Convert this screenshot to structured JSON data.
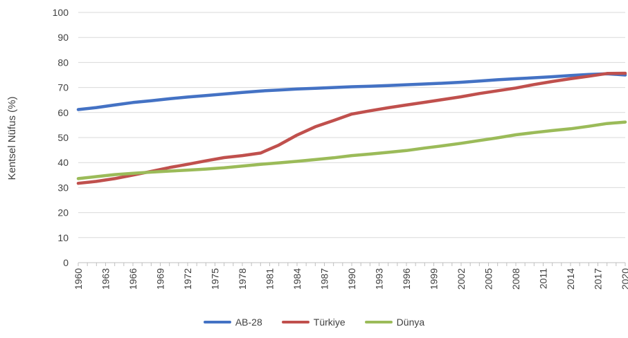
{
  "chart_data": {
    "type": "line",
    "title": "",
    "xlabel": "",
    "ylabel": "Kentsel Nüfus (%)",
    "ylim": [
      0,
      100
    ],
    "yticks": [
      0,
      10,
      20,
      30,
      40,
      50,
      60,
      70,
      80,
      90,
      100
    ],
    "xticks": [
      "1960",
      "1963",
      "1966",
      "1969",
      "1972",
      "1975",
      "1978",
      "1981",
      "1984",
      "1987",
      "1990",
      "1993",
      "1996",
      "1999",
      "2002",
      "2005",
      "2008",
      "2011",
      "2014",
      "2017",
      "2020"
    ],
    "grid": "horizontal",
    "legend_position": "bottom",
    "series": [
      {
        "name": "AB-28",
        "color": "#4472C4",
        "x": [
          1960,
          1962,
          1964,
          1966,
          1968,
          1970,
          1972,
          1974,
          1976,
          1978,
          1980,
          1982,
          1984,
          1986,
          1988,
          1990,
          1992,
          1994,
          1996,
          1998,
          2000,
          2002,
          2004,
          2006,
          2008,
          2010,
          2012,
          2014,
          2016,
          2018,
          2020
        ],
        "values": [
          61.2,
          62.0,
          63.0,
          64.0,
          64.7,
          65.5,
          66.2,
          66.8,
          67.4,
          68.0,
          68.6,
          69.0,
          69.4,
          69.7,
          70.0,
          70.3,
          70.5,
          70.8,
          71.1,
          71.4,
          71.7,
          72.1,
          72.6,
          73.1,
          73.5,
          73.9,
          74.3,
          74.8,
          75.2,
          75.5,
          75.0
        ]
      },
      {
        "name": "Türkiye",
        "color": "#C0504D",
        "x": [
          1960,
          1962,
          1964,
          1966,
          1968,
          1970,
          1972,
          1974,
          1976,
          1978,
          1980,
          1982,
          1984,
          1986,
          1988,
          1990,
          1992,
          1994,
          1996,
          1998,
          2000,
          2002,
          2004,
          2006,
          2008,
          2010,
          2012,
          2014,
          2016,
          2018,
          2020
        ],
        "values": [
          31.7,
          32.5,
          33.6,
          35.0,
          36.5,
          38.0,
          39.3,
          40.7,
          42.0,
          42.8,
          43.8,
          47.0,
          51.0,
          54.3,
          56.8,
          59.4,
          60.7,
          61.9,
          63.0,
          64.1,
          65.2,
          66.3,
          67.6,
          68.7,
          69.8,
          71.2,
          72.4,
          73.5,
          74.5,
          75.6,
          75.7
        ]
      },
      {
        "name": "Dünya",
        "color": "#9BBB59",
        "x": [
          1960,
          1962,
          1964,
          1966,
          1968,
          1970,
          1972,
          1974,
          1976,
          1978,
          1980,
          1982,
          1984,
          1986,
          1988,
          1990,
          1992,
          1994,
          1996,
          1998,
          2000,
          2002,
          2004,
          2006,
          2008,
          2010,
          2012,
          2014,
          2016,
          2018,
          2020
        ],
        "values": [
          33.6,
          34.4,
          35.2,
          35.7,
          36.2,
          36.6,
          37.0,
          37.4,
          37.9,
          38.6,
          39.3,
          39.9,
          40.5,
          41.2,
          41.9,
          42.8,
          43.4,
          44.1,
          44.8,
          45.8,
          46.7,
          47.7,
          48.8,
          49.9,
          51.1,
          52.0,
          52.8,
          53.5,
          54.5,
          55.6,
          56.2
        ]
      }
    ]
  }
}
